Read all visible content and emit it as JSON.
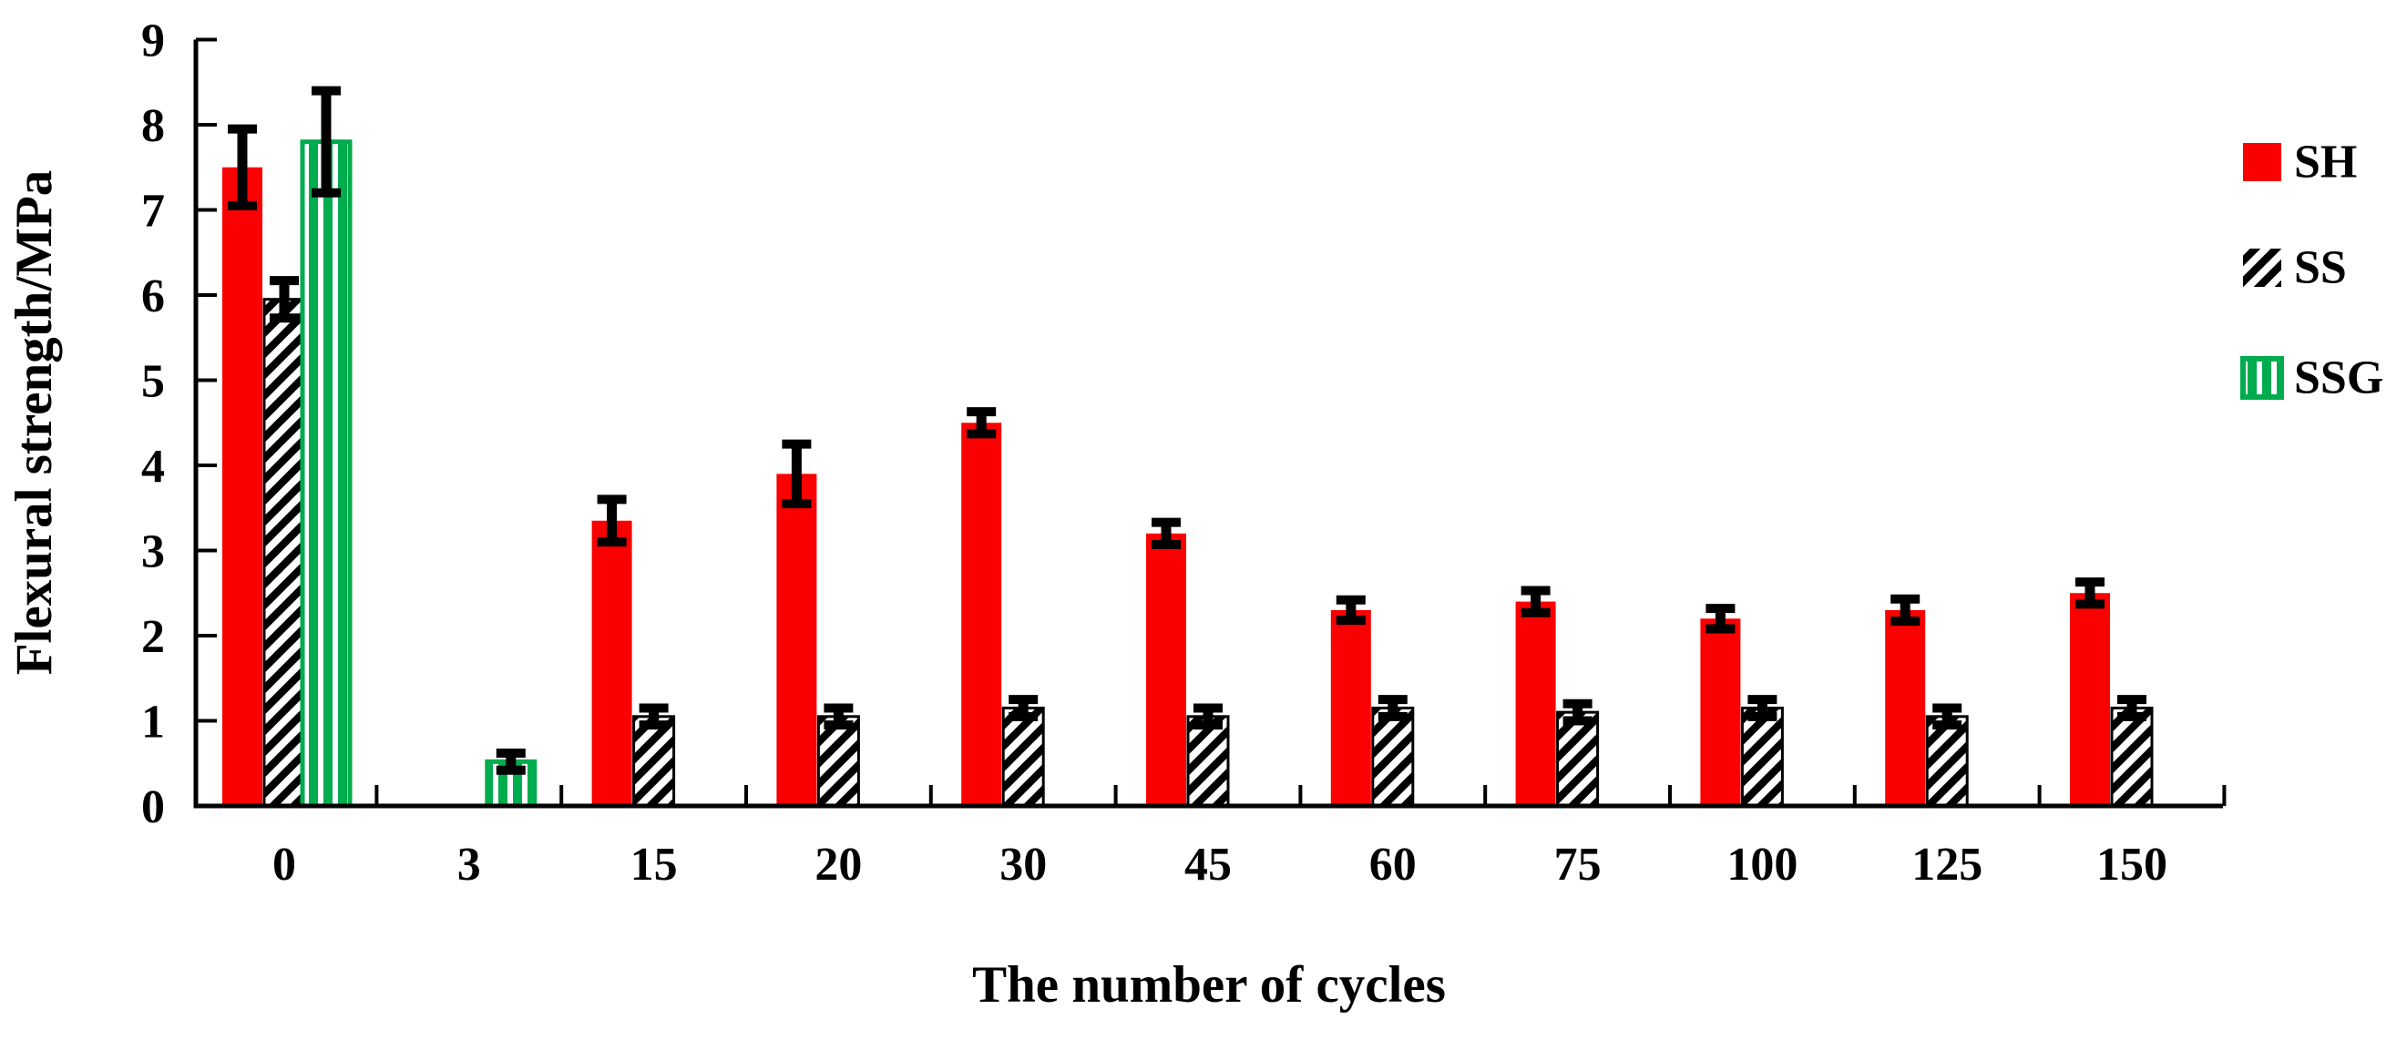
{
  "chart_data": {
    "type": "bar",
    "title": "",
    "xlabel": "The number of cycles",
    "ylabel": "Flexural strength/MPa",
    "categories": [
      "0",
      "3",
      "15",
      "20",
      "30",
      "45",
      "60",
      "75",
      "100",
      "125",
      "150"
    ],
    "series": [
      {
        "name": "SH",
        "color": "#fa0000",
        "pattern": "solid",
        "values": [
          7.5,
          null,
          3.35,
          3.9,
          4.5,
          3.2,
          2.3,
          2.4,
          2.2,
          2.3,
          2.5
        ],
        "errors": [
          0.45,
          null,
          0.25,
          0.35,
          0.13,
          0.13,
          0.12,
          0.13,
          0.12,
          0.13,
          0.13
        ]
      },
      {
        "name": "SS",
        "color": "#000000",
        "pattern": "diagonal-hatch-white-on-black",
        "values": [
          5.95,
          null,
          1.05,
          1.05,
          1.15,
          1.05,
          1.15,
          1.1,
          1.15,
          1.05,
          1.15
        ],
        "errors": [
          0.22,
          null,
          0.1,
          0.1,
          0.1,
          0.1,
          0.1,
          0.1,
          0.1,
          0.1,
          0.1
        ]
      },
      {
        "name": "SSG",
        "color": "#00ac4e",
        "pattern": "vertical-green-stripes",
        "values": [
          7.8,
          0.52,
          null,
          null,
          null,
          null,
          null,
          null,
          null,
          null,
          null
        ],
        "errors": [
          0.6,
          0.1,
          null,
          null,
          null,
          null,
          null,
          null,
          null,
          null,
          null
        ]
      }
    ],
    "ylim": [
      0,
      9
    ],
    "ytick_step": 1,
    "yticks": [
      "0",
      "1",
      "2",
      "3",
      "4",
      "5",
      "6",
      "7",
      "8",
      "9"
    ],
    "grid": false,
    "error_bars": true,
    "legend_position": "right",
    "axis_color": "#000000",
    "background": "#ffffff"
  }
}
